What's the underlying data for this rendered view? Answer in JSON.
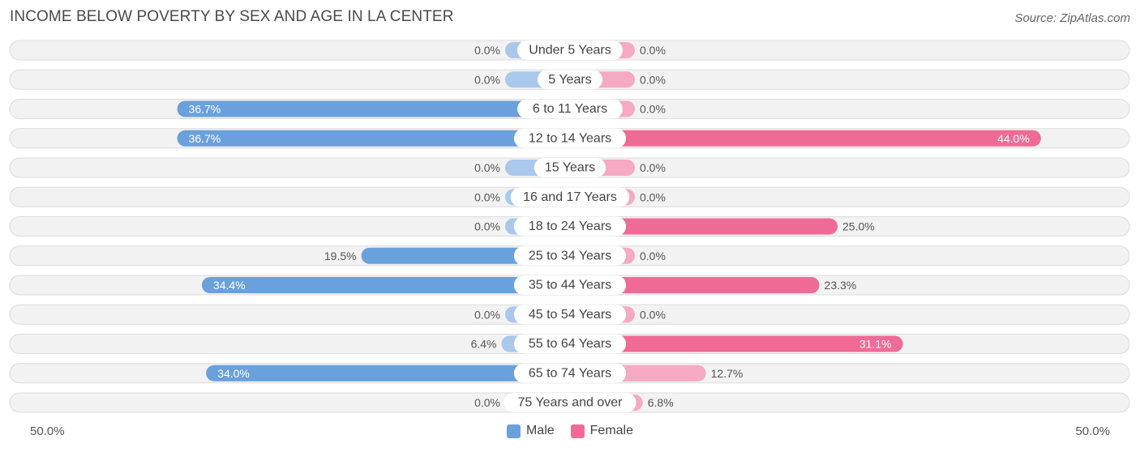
{
  "title": "INCOME BELOW POVERTY BY SEX AND AGE IN LA CENTER",
  "source": "Source: ZipAtlas.com",
  "axis": {
    "left_label": "50.0%",
    "right_label": "50.0%"
  },
  "legend": {
    "male_label": "Male",
    "female_label": "Female"
  },
  "colors": {
    "male_strong": "#6aa0dc",
    "male_light": "#a9c8ec",
    "female_strong": "#f06a96",
    "female_light": "#f6a9c3",
    "row_bg": "#f2f2f2",
    "row_border": "#dcdcdc"
  },
  "chart_data": {
    "type": "bar",
    "orientation": "diverging-horizontal",
    "title": "INCOME BELOW POVERTY BY SEX AND AGE IN LA CENTER",
    "categories": [
      "Under 5 Years",
      "5 Years",
      "6 to 11 Years",
      "12 to 14 Years",
      "15 Years",
      "16 and 17 Years",
      "18 to 24 Years",
      "25 to 34 Years",
      "35 to 44 Years",
      "45 to 54 Years",
      "55 to 64 Years",
      "65 to 74 Years",
      "75 Years and over"
    ],
    "series": [
      {
        "name": "Male",
        "values": [
          0.0,
          0.0,
          36.7,
          36.7,
          0.0,
          0.0,
          0.0,
          19.5,
          34.4,
          0.0,
          6.4,
          34.0,
          0.0
        ],
        "labels": [
          "0.0%",
          "0.0%",
          "36.7%",
          "36.7%",
          "0.0%",
          "0.0%",
          "0.0%",
          "19.5%",
          "34.4%",
          "0.0%",
          "6.4%",
          "34.0%",
          "0.0%"
        ]
      },
      {
        "name": "Female",
        "values": [
          0.0,
          0.0,
          0.0,
          44.0,
          0.0,
          0.0,
          25.0,
          0.0,
          23.3,
          0.0,
          31.1,
          12.7,
          6.8
        ],
        "labels": [
          "0.0%",
          "0.0%",
          "0.0%",
          "44.0%",
          "0.0%",
          "0.0%",
          "25.0%",
          "0.0%",
          "23.3%",
          "0.0%",
          "31.1%",
          "12.7%",
          "6.8%"
        ]
      }
    ],
    "xlim": [
      -50,
      50
    ],
    "xlabel_left": "50.0%",
    "xlabel_right": "50.0%",
    "legend_position": "bottom-center"
  }
}
